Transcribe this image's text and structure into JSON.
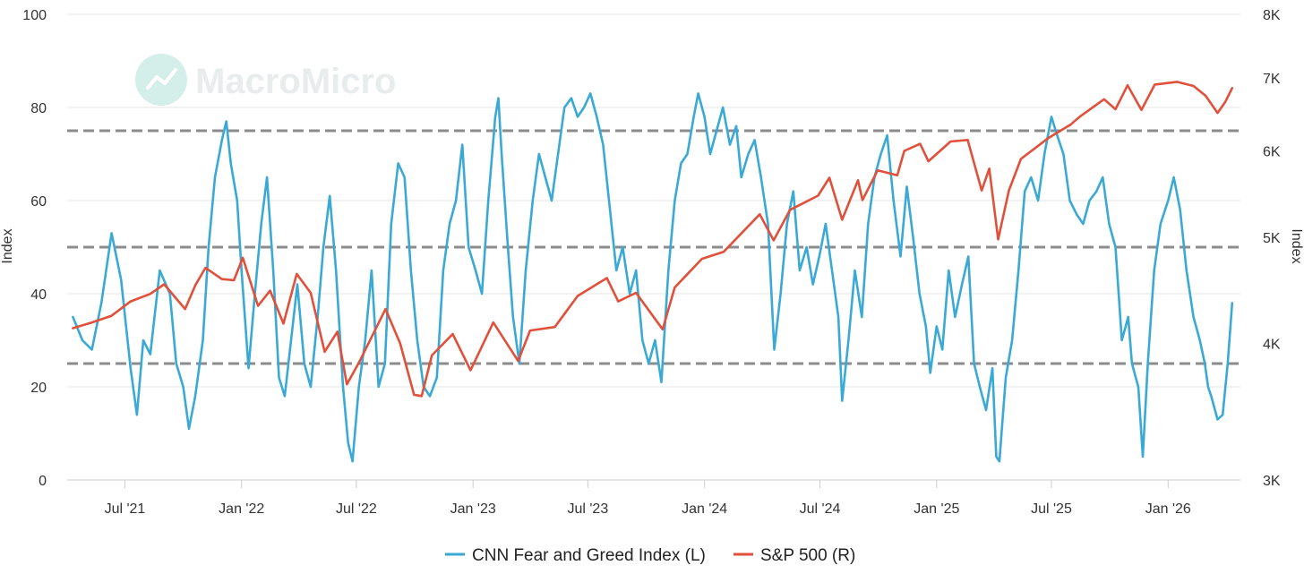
{
  "watermark": {
    "brand": "MacroMicro"
  },
  "chart_data": {
    "type": "line",
    "title": "",
    "x_axis": {
      "ticks": [
        {
          "label": "Jul '21",
          "date": "2021-07"
        },
        {
          "label": "Jan '22",
          "date": "2022-01"
        },
        {
          "label": "Jul '22",
          "date": "2022-07"
        },
        {
          "label": "Jan '23",
          "date": "2023-01"
        },
        {
          "label": "Jul '23",
          "date": "2023-07"
        },
        {
          "label": "Jan '24",
          "date": "2024-01"
        },
        {
          "label": "Jul '24",
          "date": "2024-07"
        },
        {
          "label": "Jan '25",
          "date": "2025-01"
        },
        {
          "label": "Jul '25",
          "date": "2025-07"
        },
        {
          "label": "Jan '26",
          "date": "2026-01"
        }
      ],
      "range": [
        "2021-04-01",
        "2026-04-25"
      ]
    },
    "y_left": {
      "label": "Index",
      "ticks": [
        "0",
        "20",
        "40",
        "60",
        "80",
        "100"
      ],
      "range": [
        0,
        100
      ]
    },
    "y_right": {
      "label": "Index",
      "ticks": [
        "3K",
        "4K",
        "5K",
        "6K",
        "7K",
        "8K"
      ],
      "range": [
        3000,
        8000
      ],
      "scale": "log"
    },
    "reference_lines": [
      25,
      50,
      75
    ],
    "legend": [
      {
        "name": "CNN Fear and Greed Index (L)",
        "color": "#3aa9d6"
      },
      {
        "name": "S&P 500 (R)",
        "color": "#e0503a"
      }
    ],
    "series": [
      {
        "name": "CNN Fear and Greed Index (L)",
        "axis": "left",
        "color": "#3aa9d6",
        "points": [
          [
            "2021-04-10",
            35
          ],
          [
            "2021-04-25",
            30
          ],
          [
            "2021-05-10",
            28
          ],
          [
            "2021-05-25",
            38
          ],
          [
            "2021-06-10",
            53
          ],
          [
            "2021-06-25",
            43
          ],
          [
            "2021-07-10",
            24
          ],
          [
            "2021-07-20",
            14
          ],
          [
            "2021-07-30",
            30
          ],
          [
            "2021-08-10",
            27
          ],
          [
            "2021-08-25",
            45
          ],
          [
            "2021-09-10",
            40
          ],
          [
            "2021-09-20",
            25
          ],
          [
            "2021-10-01",
            20
          ],
          [
            "2021-10-10",
            11
          ],
          [
            "2021-10-20",
            18
          ],
          [
            "2021-11-01",
            30
          ],
          [
            "2021-11-10",
            50
          ],
          [
            "2021-11-20",
            65
          ],
          [
            "2021-12-01",
            73
          ],
          [
            "2021-12-08",
            77
          ],
          [
            "2021-12-15",
            68
          ],
          [
            "2021-12-25",
            60
          ],
          [
            "2022-01-01",
            45
          ],
          [
            "2022-01-12",
            24
          ],
          [
            "2022-01-22",
            40
          ],
          [
            "2022-02-01",
            55
          ],
          [
            "2022-02-10",
            65
          ],
          [
            "2022-02-20",
            45
          ],
          [
            "2022-03-01",
            22
          ],
          [
            "2022-03-10",
            18
          ],
          [
            "2022-03-20",
            30
          ],
          [
            "2022-03-30",
            42
          ],
          [
            "2022-04-10",
            25
          ],
          [
            "2022-04-20",
            20
          ],
          [
            "2022-05-01",
            35
          ],
          [
            "2022-05-10",
            50
          ],
          [
            "2022-05-20",
            61
          ],
          [
            "2022-05-30",
            45
          ],
          [
            "2022-06-10",
            20
          ],
          [
            "2022-06-18",
            8
          ],
          [
            "2022-06-25",
            4
          ],
          [
            "2022-07-05",
            20
          ],
          [
            "2022-07-15",
            30
          ],
          [
            "2022-07-25",
            45
          ],
          [
            "2022-08-05",
            20
          ],
          [
            "2022-08-15",
            25
          ],
          [
            "2022-08-25",
            55
          ],
          [
            "2022-09-05",
            68
          ],
          [
            "2022-09-15",
            65
          ],
          [
            "2022-09-25",
            45
          ],
          [
            "2022-10-05",
            30
          ],
          [
            "2022-10-15",
            20
          ],
          [
            "2022-10-25",
            18
          ],
          [
            "2022-11-05",
            22
          ],
          [
            "2022-11-15",
            45
          ],
          [
            "2022-11-25",
            55
          ],
          [
            "2022-12-05",
            60
          ],
          [
            "2022-12-15",
            72
          ],
          [
            "2022-12-25",
            50
          ],
          [
            "2023-01-05",
            45
          ],
          [
            "2023-01-15",
            40
          ],
          [
            "2023-01-25",
            60
          ],
          [
            "2023-02-05",
            78
          ],
          [
            "2023-02-10",
            82
          ],
          [
            "2023-02-15",
            70
          ],
          [
            "2023-02-25",
            50
          ],
          [
            "2023-03-05",
            35
          ],
          [
            "2023-03-15",
            25
          ],
          [
            "2023-03-25",
            45
          ],
          [
            "2023-04-05",
            60
          ],
          [
            "2023-04-15",
            70
          ],
          [
            "2023-04-25",
            65
          ],
          [
            "2023-05-05",
            60
          ],
          [
            "2023-05-15",
            70
          ],
          [
            "2023-05-25",
            80
          ],
          [
            "2023-06-05",
            82
          ],
          [
            "2023-06-15",
            78
          ],
          [
            "2023-06-25",
            80
          ],
          [
            "2023-07-05",
            83
          ],
          [
            "2023-07-15",
            78
          ],
          [
            "2023-07-25",
            72
          ],
          [
            "2023-08-05",
            58
          ],
          [
            "2023-08-15",
            45
          ],
          [
            "2023-08-25",
            50
          ],
          [
            "2023-09-05",
            40
          ],
          [
            "2023-09-15",
            45
          ],
          [
            "2023-09-25",
            30
          ],
          [
            "2023-10-05",
            25
          ],
          [
            "2023-10-15",
            30
          ],
          [
            "2023-10-25",
            21
          ],
          [
            "2023-11-05",
            45
          ],
          [
            "2023-11-15",
            60
          ],
          [
            "2023-11-25",
            68
          ],
          [
            "2023-12-05",
            70
          ],
          [
            "2023-12-15",
            78
          ],
          [
            "2023-12-22",
            83
          ],
          [
            "2024-01-01",
            78
          ],
          [
            "2024-01-10",
            70
          ],
          [
            "2024-01-20",
            75
          ],
          [
            "2024-01-30",
            80
          ],
          [
            "2024-02-10",
            72
          ],
          [
            "2024-02-20",
            76
          ],
          [
            "2024-02-28",
            65
          ],
          [
            "2024-03-10",
            70
          ],
          [
            "2024-03-20",
            73
          ],
          [
            "2024-03-30",
            65
          ],
          [
            "2024-04-10",
            55
          ],
          [
            "2024-04-20",
            28
          ],
          [
            "2024-04-30",
            40
          ],
          [
            "2024-05-10",
            55
          ],
          [
            "2024-05-20",
            62
          ],
          [
            "2024-05-30",
            45
          ],
          [
            "2024-06-10",
            50
          ],
          [
            "2024-06-20",
            42
          ],
          [
            "2024-06-30",
            48
          ],
          [
            "2024-07-10",
            55
          ],
          [
            "2024-07-20",
            45
          ],
          [
            "2024-07-30",
            35
          ],
          [
            "2024-08-05",
            17
          ],
          [
            "2024-08-15",
            30
          ],
          [
            "2024-08-25",
            45
          ],
          [
            "2024-09-05",
            35
          ],
          [
            "2024-09-15",
            55
          ],
          [
            "2024-09-25",
            65
          ],
          [
            "2024-10-05",
            70
          ],
          [
            "2024-10-15",
            74
          ],
          [
            "2024-10-25",
            60
          ],
          [
            "2024-11-05",
            48
          ],
          [
            "2024-11-15",
            63
          ],
          [
            "2024-11-25",
            52
          ],
          [
            "2024-12-05",
            40
          ],
          [
            "2024-12-15",
            33
          ],
          [
            "2024-12-22",
            23
          ],
          [
            "2025-01-01",
            33
          ],
          [
            "2025-01-10",
            28
          ],
          [
            "2025-01-20",
            45
          ],
          [
            "2025-01-30",
            35
          ],
          [
            "2025-02-10",
            42
          ],
          [
            "2025-02-20",
            48
          ],
          [
            "2025-03-01",
            25
          ],
          [
            "2025-03-10",
            20
          ],
          [
            "2025-03-20",
            15
          ],
          [
            "2025-03-30",
            24
          ],
          [
            "2025-04-05",
            5
          ],
          [
            "2025-04-10",
            4
          ],
          [
            "2025-04-20",
            22
          ],
          [
            "2025-04-30",
            30
          ],
          [
            "2025-05-10",
            45
          ],
          [
            "2025-05-20",
            62
          ],
          [
            "2025-05-30",
            65
          ],
          [
            "2025-06-10",
            60
          ],
          [
            "2025-06-20",
            70
          ],
          [
            "2025-07-01",
            78
          ],
          [
            "2025-07-10",
            74
          ],
          [
            "2025-07-20",
            70
          ],
          [
            "2025-07-30",
            60
          ],
          [
            "2025-08-10",
            57
          ],
          [
            "2025-08-20",
            55
          ],
          [
            "2025-08-30",
            60
          ],
          [
            "2025-09-10",
            62
          ],
          [
            "2025-09-20",
            65
          ],
          [
            "2025-09-30",
            55
          ],
          [
            "2025-10-10",
            50
          ],
          [
            "2025-10-20",
            30
          ],
          [
            "2025-10-30",
            35
          ],
          [
            "2025-11-05",
            25
          ],
          [
            "2025-11-15",
            20
          ],
          [
            "2025-11-22",
            5
          ],
          [
            "2025-11-30",
            25
          ],
          [
            "2025-12-10",
            45
          ],
          [
            "2025-12-20",
            55
          ],
          [
            "2026-01-01",
            60
          ],
          [
            "2026-01-10",
            65
          ],
          [
            "2026-01-20",
            58
          ],
          [
            "2026-01-30",
            45
          ],
          [
            "2026-02-10",
            35
          ],
          [
            "2026-02-20",
            30
          ],
          [
            "2026-02-28",
            25
          ],
          [
            "2026-03-05",
            20
          ],
          [
            "2026-03-10",
            18
          ],
          [
            "2026-03-20",
            13
          ],
          [
            "2026-03-28",
            14
          ],
          [
            "2026-04-05",
            25
          ],
          [
            "2026-04-12",
            38
          ]
        ]
      },
      {
        "name": "S&P 500 (R)",
        "axis": "right",
        "color": "#e0503a",
        "points": [
          [
            "2021-04-10",
            4130
          ],
          [
            "2021-05-10",
            4180
          ],
          [
            "2021-06-10",
            4240
          ],
          [
            "2021-07-10",
            4370
          ],
          [
            "2021-08-10",
            4440
          ],
          [
            "2021-09-01",
            4530
          ],
          [
            "2021-10-04",
            4300
          ],
          [
            "2021-10-20",
            4520
          ],
          [
            "2021-11-05",
            4690
          ],
          [
            "2021-12-01",
            4580
          ],
          [
            "2021-12-20",
            4570
          ],
          [
            "2022-01-03",
            4790
          ],
          [
            "2022-01-27",
            4330
          ],
          [
            "2022-02-15",
            4470
          ],
          [
            "2022-03-08",
            4170
          ],
          [
            "2022-03-29",
            4630
          ],
          [
            "2022-04-20",
            4450
          ],
          [
            "2022-05-12",
            3930
          ],
          [
            "2022-06-01",
            4100
          ],
          [
            "2022-06-16",
            3670
          ],
          [
            "2022-07-05",
            3840
          ],
          [
            "2022-08-16",
            4300
          ],
          [
            "2022-09-08",
            4000
          ],
          [
            "2022-09-30",
            3590
          ],
          [
            "2022-10-12",
            3580
          ],
          [
            "2022-10-28",
            3900
          ],
          [
            "2022-11-30",
            4080
          ],
          [
            "2022-12-28",
            3780
          ],
          [
            "2023-01-10",
            3920
          ],
          [
            "2023-02-02",
            4180
          ],
          [
            "2023-03-13",
            3855
          ],
          [
            "2023-04-01",
            4110
          ],
          [
            "2023-05-10",
            4140
          ],
          [
            "2023-06-15",
            4420
          ],
          [
            "2023-07-31",
            4590
          ],
          [
            "2023-08-18",
            4370
          ],
          [
            "2023-09-15",
            4450
          ],
          [
            "2023-10-27",
            4120
          ],
          [
            "2023-11-15",
            4500
          ],
          [
            "2023-12-28",
            4780
          ],
          [
            "2024-01-31",
            4850
          ],
          [
            "2024-03-28",
            5250
          ],
          [
            "2024-04-19",
            4970
          ],
          [
            "2024-05-15",
            5300
          ],
          [
            "2024-06-28",
            5460
          ],
          [
            "2024-07-16",
            5670
          ],
          [
            "2024-08-05",
            5190
          ],
          [
            "2024-08-30",
            5640
          ],
          [
            "2024-09-06",
            5410
          ],
          [
            "2024-09-30",
            5760
          ],
          [
            "2024-10-31",
            5700
          ],
          [
            "2024-11-11",
            6000
          ],
          [
            "2024-12-06",
            6090
          ],
          [
            "2024-12-19",
            5870
          ],
          [
            "2025-01-23",
            6120
          ],
          [
            "2025-02-19",
            6140
          ],
          [
            "2025-03-13",
            5520
          ],
          [
            "2025-03-25",
            5780
          ],
          [
            "2025-04-08",
            4980
          ],
          [
            "2025-04-25",
            5520
          ],
          [
            "2025-05-14",
            5900
          ],
          [
            "2025-06-27",
            6170
          ],
          [
            "2025-07-31",
            6340
          ],
          [
            "2025-08-15",
            6450
          ],
          [
            "2025-09-22",
            6690
          ],
          [
            "2025-10-10",
            6550
          ],
          [
            "2025-10-29",
            6890
          ],
          [
            "2025-11-20",
            6540
          ],
          [
            "2025-12-11",
            6900
          ],
          [
            "2026-01-15",
            6940
          ],
          [
            "2026-02-10",
            6880
          ],
          [
            "2026-03-01",
            6740
          ],
          [
            "2026-03-20",
            6500
          ],
          [
            "2026-04-01",
            6650
          ],
          [
            "2026-04-12",
            6850
          ]
        ]
      }
    ]
  }
}
